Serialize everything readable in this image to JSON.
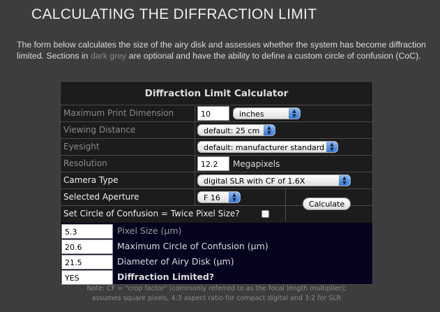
{
  "title": "CALCULATING THE DIFFRACTION LIMIT",
  "intro": {
    "part1": "The form below calculates the size of the airy disk and assesses whether the system has become diffraction limited.  Sections in ",
    "highlight": "dark grey",
    "part2": " are optional and have the ability to define a custom circle of confusion (CoC)."
  },
  "calculator": {
    "heading": "Diffraction Limit Calculator",
    "max_print": {
      "label": "Maximum Print Dimension",
      "value": "10",
      "unit": "inches"
    },
    "viewing": {
      "label": "Viewing Distance",
      "value": "default: 25 cm"
    },
    "eyesight": {
      "label": "Eyesight",
      "value": "default: manufacturer standard"
    },
    "resolution": {
      "label": "Resolution",
      "value": "12.2",
      "unit": "Megapixels"
    },
    "camera": {
      "label": "Camera Type",
      "value": "digital SLR with CF of 1.6X"
    },
    "aperture": {
      "label": "Selected Aperture",
      "value": "F 16"
    },
    "coc": {
      "label": "Set Circle of Confusion = Twice Pixel Size?",
      "checked": false
    },
    "calculate_label": "Calculate",
    "results": [
      {
        "value": "5.3",
        "label": "Pixel Size (µm)"
      },
      {
        "value": "20.6",
        "label": "Maximum Circle of Confusion (µm)"
      },
      {
        "value": "21.5",
        "label": "Diameter of Airy Disk (µm)"
      },
      {
        "value": "YES",
        "label": "Diffraction Limited?"
      }
    ],
    "note1": "Note: CF = \"crop factor\" (commonly referred to as the focal length multiplier);",
    "note2": "assumes square pixels, 4:3 aspect ratio for compact digital and 3:2 for SLR"
  }
}
